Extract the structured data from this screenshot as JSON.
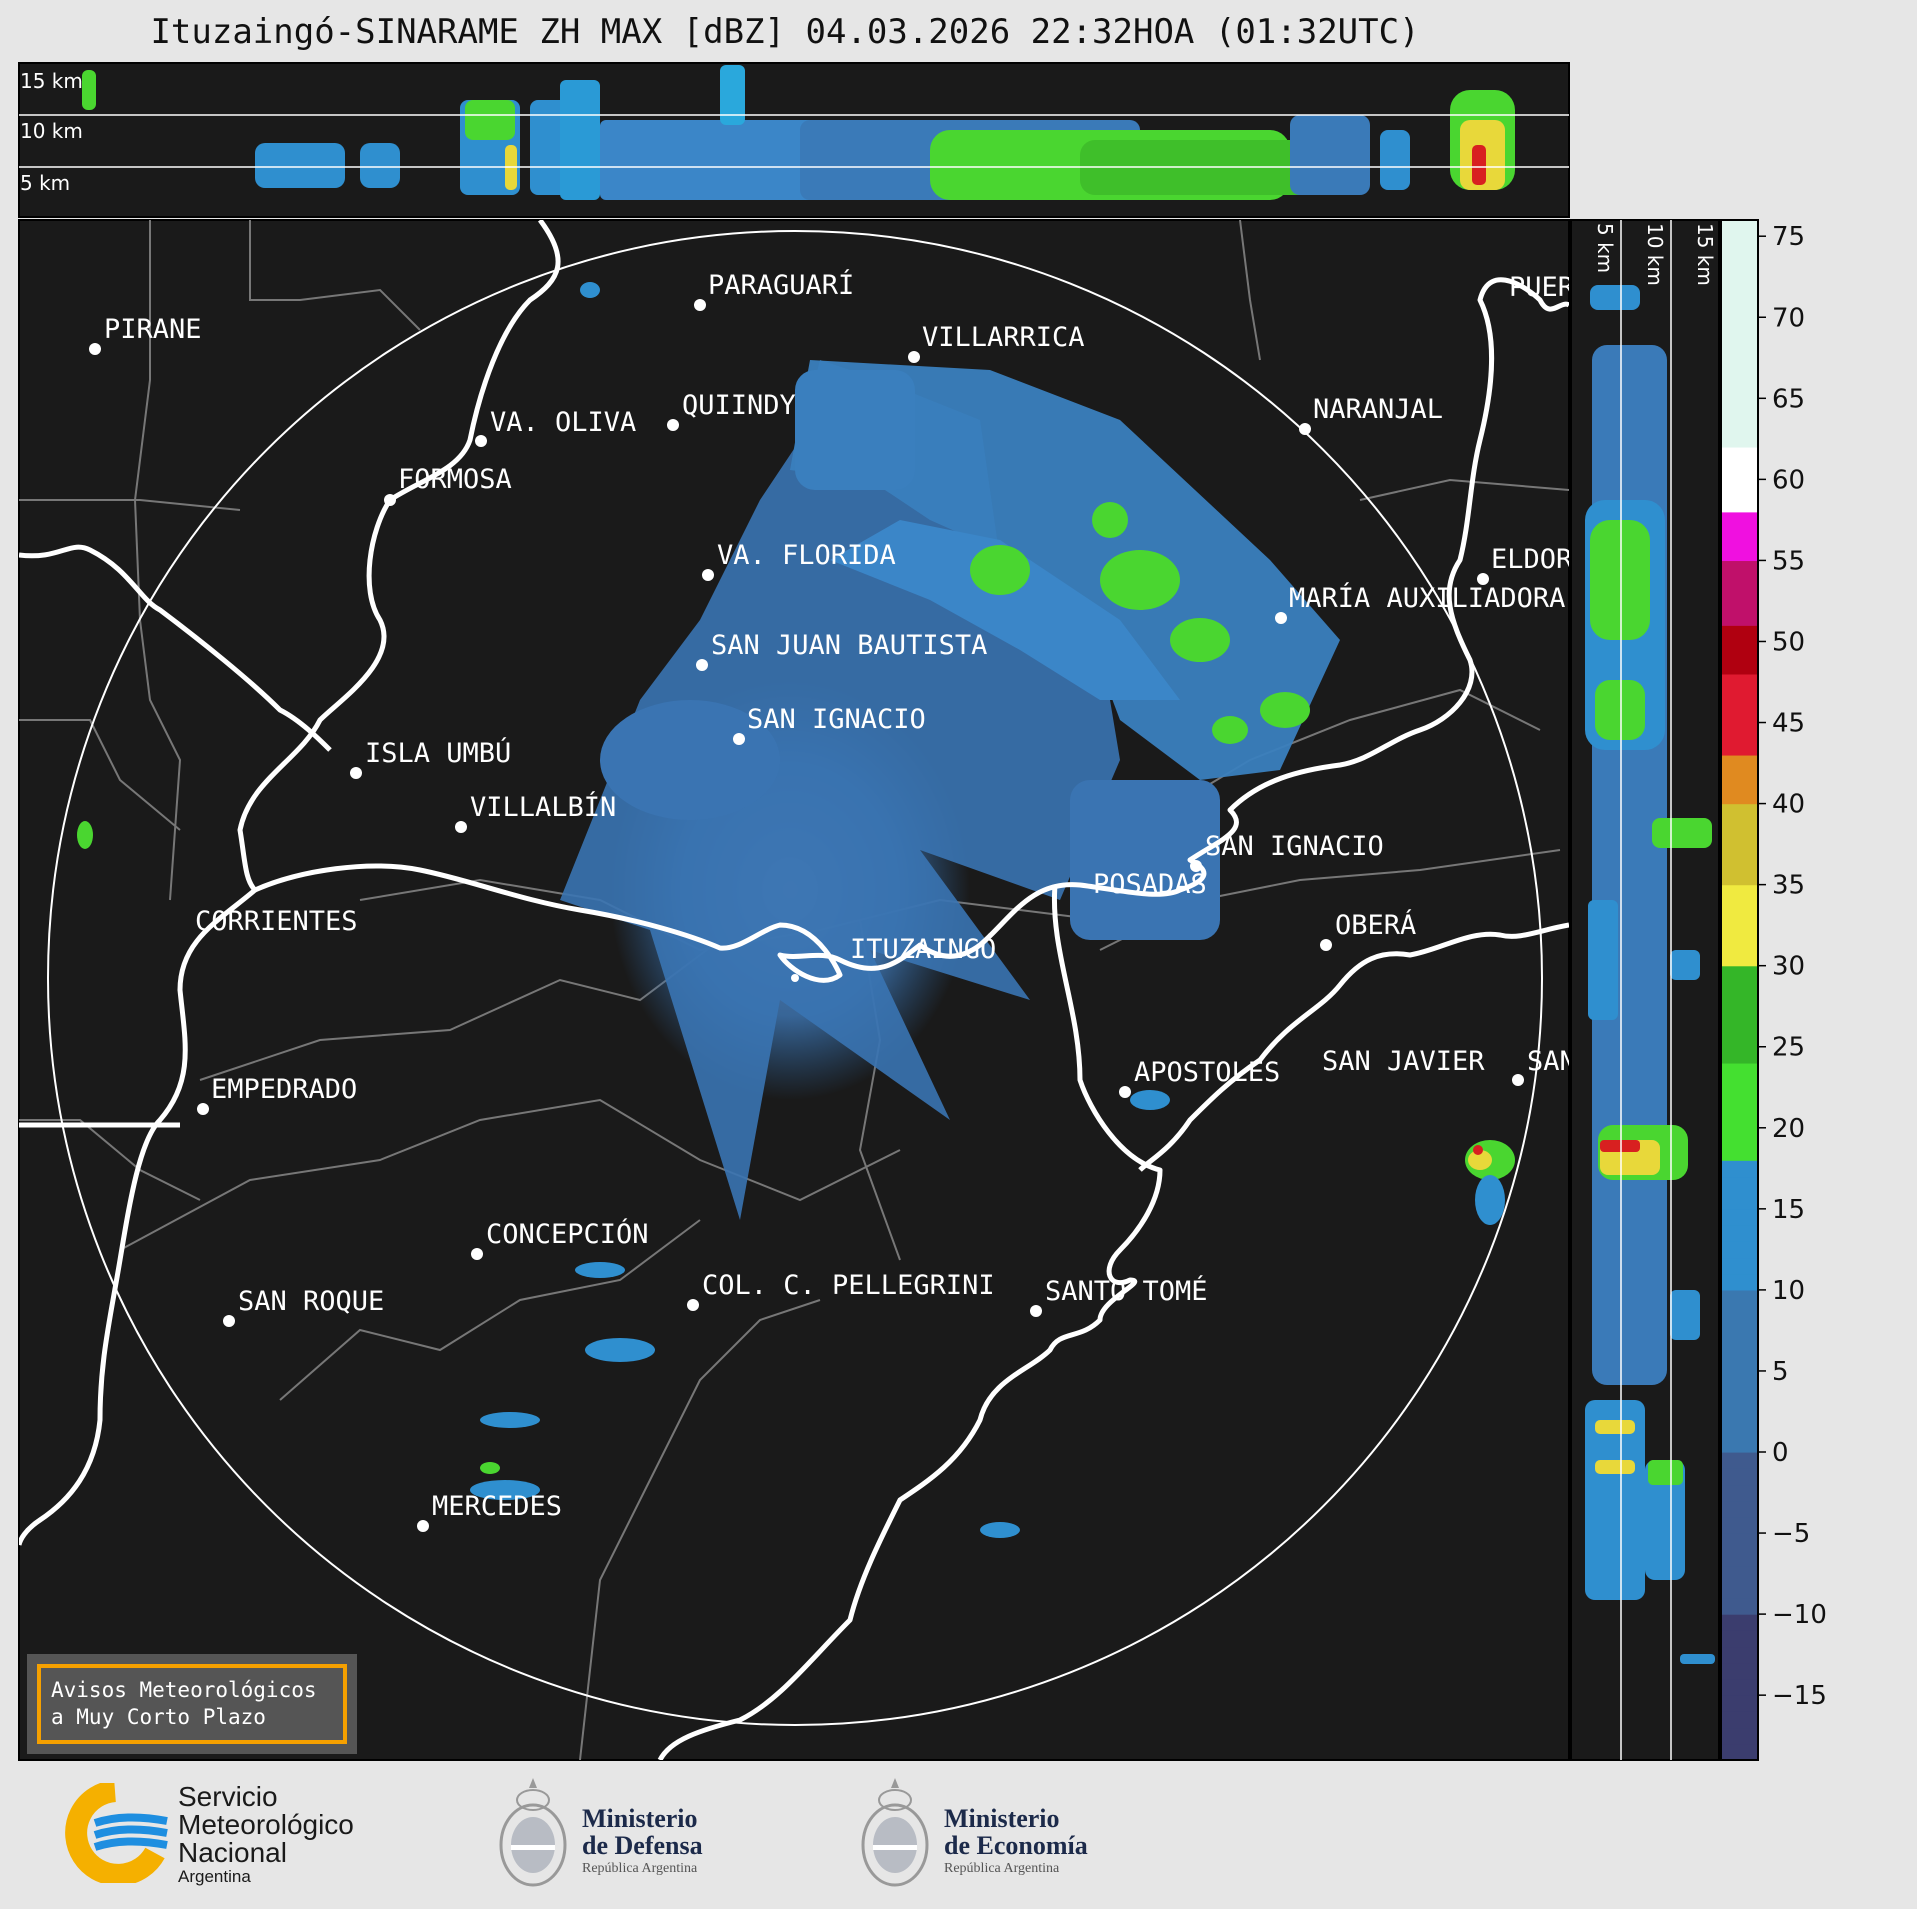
{
  "title": "Ituzaingó-SINARAME ZH MAX [dBZ] 04.03.2026 22:32HOA (01:32UTC)",
  "top_panel": {
    "altitude_labels": [
      "15 km",
      "10 km",
      "5 km"
    ]
  },
  "side_panel": {
    "altitude_labels": [
      "5 km",
      "10 km",
      "15 km"
    ]
  },
  "cities": [
    {
      "name": "PARAGUARÍ"
    },
    {
      "name": "PIRANE"
    },
    {
      "name": "VILLARRICA"
    },
    {
      "name": "QUIINDY"
    },
    {
      "name": "VA. OLIVA"
    },
    {
      "name": "NARANJAL"
    },
    {
      "name": "FORMOSA"
    },
    {
      "name": "PUERTO"
    },
    {
      "name": "VA. FLORIDA"
    },
    {
      "name": "ELDORADO"
    },
    {
      "name": "MARÍA AUXILIADORA"
    },
    {
      "name": "SAN JUAN BAUTISTA"
    },
    {
      "name": "SAN IGNACIO"
    },
    {
      "name": "ISLA UMBÚ"
    },
    {
      "name": "VILLALBÍN"
    },
    {
      "name": "SAN IGNACIO"
    },
    {
      "name": "POSADAS"
    },
    {
      "name": "CORRIENTES"
    },
    {
      "name": "ITUZAINGÓ"
    },
    {
      "name": "OBERÁ"
    },
    {
      "name": "APOSTOLES"
    },
    {
      "name": "SAN JAVIER"
    },
    {
      "name": "SAN"
    },
    {
      "name": "EMPEDRADO"
    },
    {
      "name": "CONCEPCIÓN"
    },
    {
      "name": "COL. C. PELLEGRINI"
    },
    {
      "name": "SANTO TOMÉ"
    },
    {
      "name": "SAN ROQUE"
    },
    {
      "name": "MERCEDES"
    }
  ],
  "colorbar": {
    "unit": "dBZ",
    "ticks": [
      "75",
      "70",
      "65",
      "60",
      "55",
      "50",
      "45",
      "40",
      "35",
      "30",
      "25",
      "20",
      "15",
      "10",
      "5",
      "0",
      "−5",
      "−10",
      "−15"
    ],
    "range": [
      -19,
      76
    ]
  },
  "aviso": {
    "line1": "Avisos Meteorológicos",
    "line2": "a Muy Corto Plazo"
  },
  "logos": {
    "smn": {
      "line1": "Servicio",
      "line2": "Meteorológico",
      "line3": "Nacional",
      "line4": "Argentina"
    },
    "defensa": {
      "line1": "Ministerio",
      "line2": "de Defensa",
      "line3": "República Argentina"
    },
    "economia": {
      "line1": "Ministerio",
      "line2": "de Economía",
      "line3": "República Argentina"
    }
  },
  "colors": {
    "map_background": "#1a1a1a",
    "river": "#ffffff",
    "border": "#777777",
    "reflectivity_light": "#3a7ab8",
    "reflectivity_mid": "#2aa8dc",
    "reflectivity_green": "#4ad630",
    "aviso_border": "#f5a000"
  }
}
